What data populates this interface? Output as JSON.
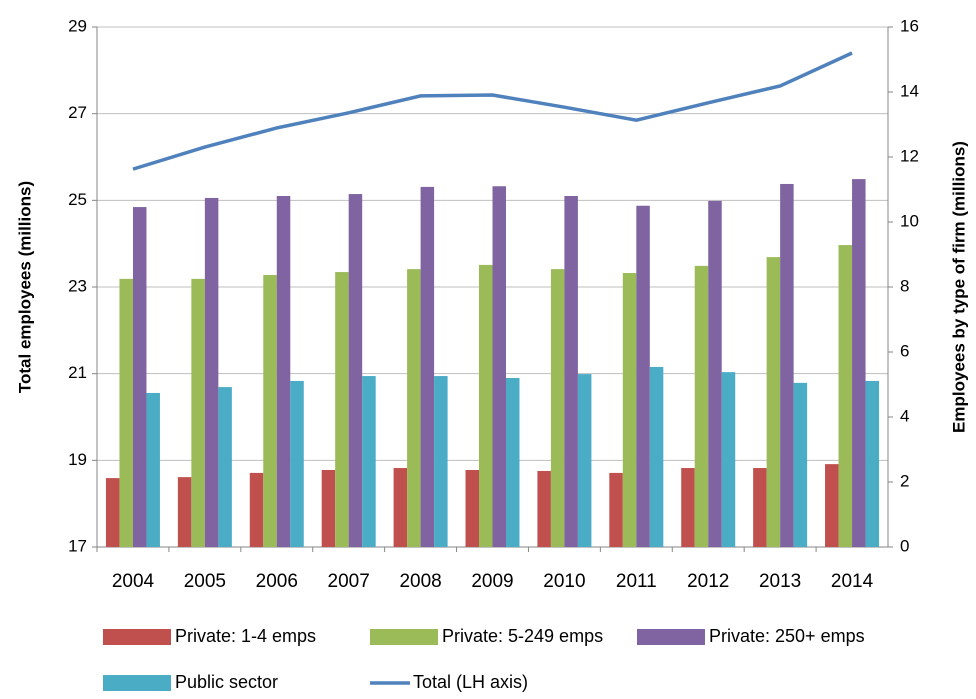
{
  "chart_data": {
    "type": "bar-line",
    "y_label": "Total employees (millions)",
    "y2_label": "Employees by type of firm (millions)",
    "categories": [
      "2004",
      "2005",
      "2006",
      "2007",
      "2008",
      "2009",
      "2010",
      "2011",
      "2012",
      "2013",
      "2014"
    ],
    "ylim": [
      17,
      29
    ],
    "yticks": [
      17,
      19,
      21,
      23,
      25,
      27,
      29
    ],
    "y2lim": [
      0,
      16
    ],
    "y2ticks": [
      0,
      2,
      4,
      6,
      8,
      10,
      12,
      14,
      16
    ],
    "grid": true,
    "series": [
      {
        "name": "Private: 1-4 emps",
        "type": "bar",
        "axis": "y2",
        "color": "#c0504d",
        "values": [
          2.12,
          2.15,
          2.28,
          2.37,
          2.43,
          2.37,
          2.34,
          2.28,
          2.43,
          2.43,
          2.55
        ]
      },
      {
        "name": "Private: 5-249 emps",
        "type": "bar",
        "axis": "y2",
        "color": "#9bbb59",
        "values": [
          8.25,
          8.25,
          8.37,
          8.46,
          8.55,
          8.68,
          8.55,
          8.43,
          8.65,
          8.92,
          9.29
        ]
      },
      {
        "name": "Private: 250+ emps",
        "type": "bar",
        "axis": "y2",
        "color": "#8064a2",
        "values": [
          10.46,
          10.74,
          10.8,
          10.86,
          11.08,
          11.1,
          10.8,
          10.5,
          10.65,
          11.17,
          11.32
        ]
      },
      {
        "name": "Public sector",
        "type": "bar",
        "axis": "y2",
        "color": "#4bacc6",
        "values": [
          4.74,
          4.92,
          5.11,
          5.26,
          5.26,
          5.2,
          5.32,
          5.54,
          5.38,
          5.05,
          5.11
        ]
      },
      {
        "name": "Total (LH axis)",
        "type": "line",
        "axis": "y",
        "color": "#4f81bd",
        "values": [
          25.72,
          26.23,
          26.67,
          27.02,
          27.41,
          27.43,
          27.15,
          26.85,
          27.25,
          27.64,
          28.4
        ]
      }
    ]
  }
}
